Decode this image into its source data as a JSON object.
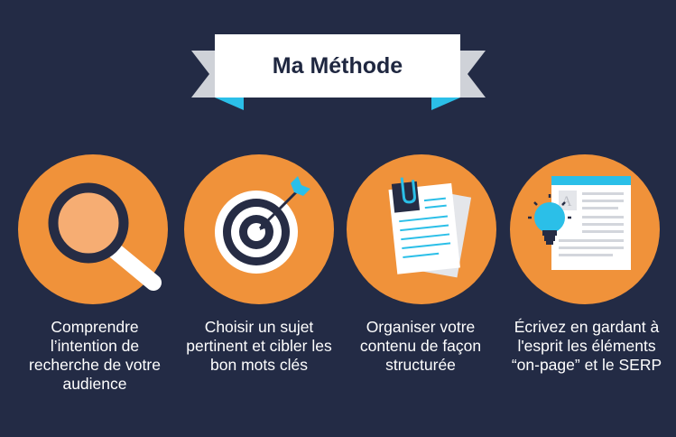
{
  "banner": {
    "title": "Ma Méthode"
  },
  "steps": [
    {
      "icon": "magnifying-glass-icon",
      "label": "Comprendre l’intention de recherche de votre audience"
    },
    {
      "icon": "target-arrow-icon",
      "label": "Choisir un sujet pertinent et cibler les bon mots clés"
    },
    {
      "icon": "documents-paperclip-icon",
      "label": "Organiser votre contenu de façon structurée"
    },
    {
      "icon": "lightbulb-webpage-icon",
      "label": "Écrivez en gardant à l'esprit les éléments “on-page” et le SERP"
    }
  ],
  "colors": {
    "background": "#232b45",
    "circle": "#f0923a",
    "banner": "#ffffff",
    "ribbon_fold": "#2bbfe8",
    "ribbon_tail": "#cfd2d8",
    "dark": "#262c44"
  }
}
